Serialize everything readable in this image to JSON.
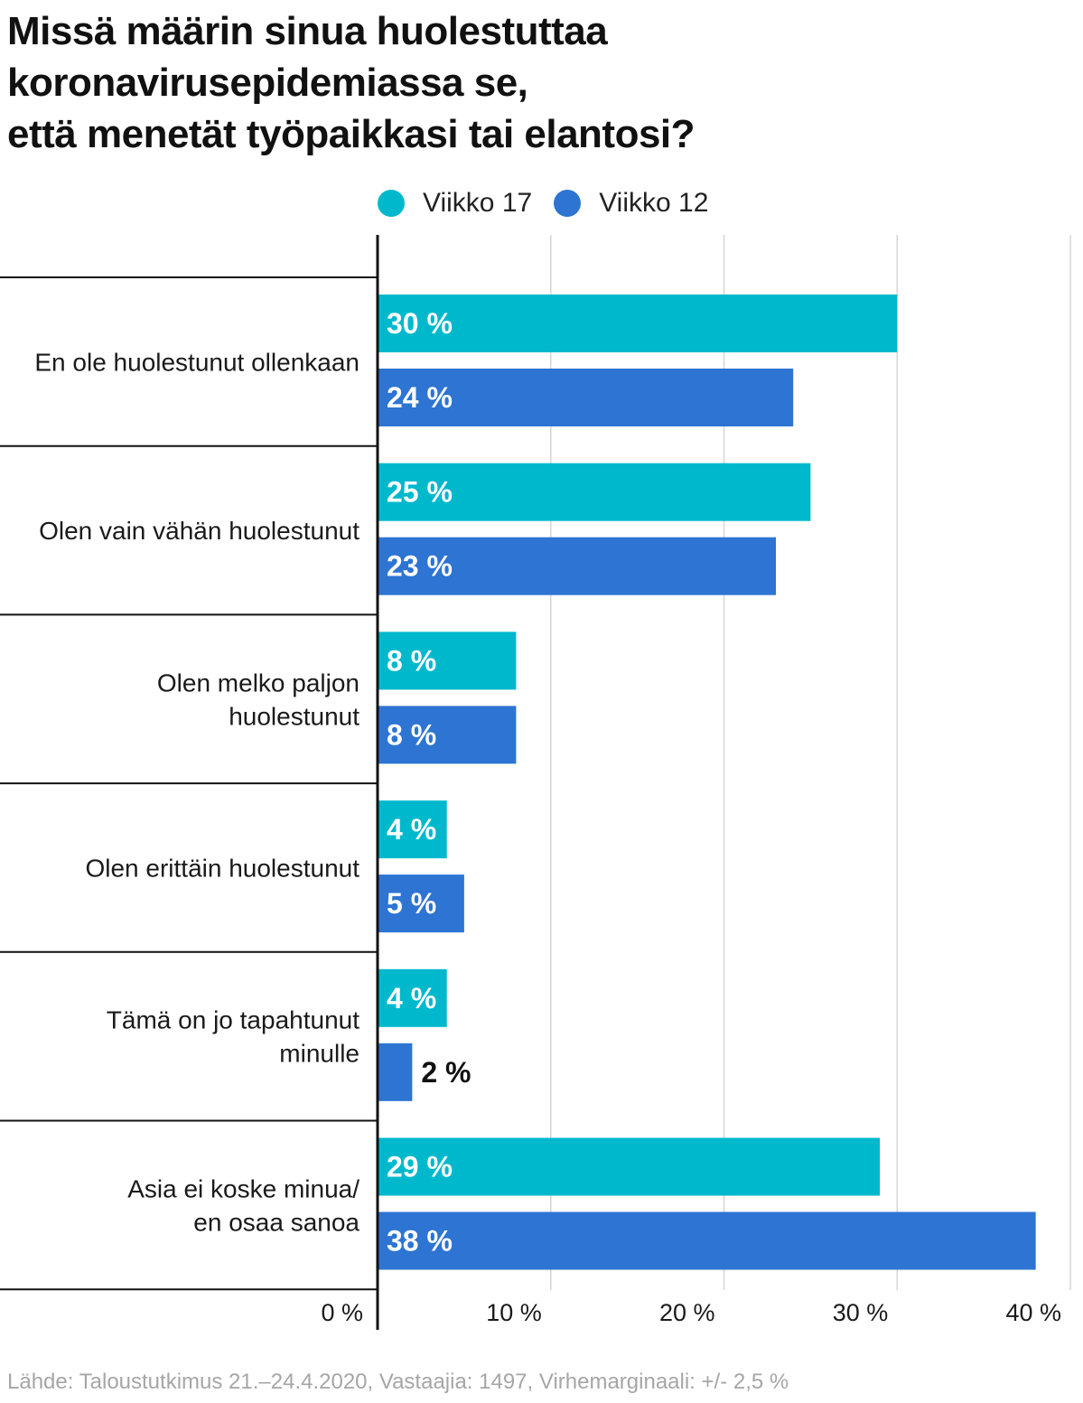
{
  "title_lines": [
    "Missä määrin sinua huolestuttaa",
    "koronavirusepidemiassa se,",
    "että menetät työpaikkasi tai elantosi?"
  ],
  "legend": [
    {
      "label": "Viikko 17",
      "color": "#00b8cc"
    },
    {
      "label": "Viikko 12",
      "color": "#2d74d3"
    }
  ],
  "source": "Lähde: Taloustutkimus 21.–24.4.2020, Vastaajia: 1497, Virhemarginaali: +/- 2,5 %",
  "chart_data": {
    "type": "bar",
    "orientation": "horizontal",
    "title": "Missä määrin sinua huolestuttaa koronavirusepidemiassa se, että menetät työpaikkasi tai elantosi?",
    "categories": [
      [
        "En ole huolestunut ollenkaan"
      ],
      [
        "Olen vain vähän huolestunut"
      ],
      [
        "Olen melko paljon",
        "huolestunut"
      ],
      [
        "Olen erittäin huolestunut"
      ],
      [
        "Tämä on jo tapahtunut",
        "minulle"
      ],
      [
        "Asia ei koske minua/",
        "en osaa sanoa"
      ]
    ],
    "series": [
      {
        "name": "Viikko 17",
        "color": "#00b8cc",
        "values": [
          30,
          25,
          8,
          4,
          4,
          29
        ],
        "labels": [
          "30 %",
          "25 %",
          "8 %",
          "4 %",
          "4 %",
          "29 %"
        ]
      },
      {
        "name": "Viikko 12",
        "color": "#2d74d3",
        "values": [
          24,
          23,
          8,
          5,
          2,
          38
        ],
        "labels": [
          "24 %",
          "23 %",
          "8 %",
          "5 %",
          "2 %",
          "38 %"
        ]
      }
    ],
    "xlim": [
      0,
      40
    ],
    "xticks": [
      0,
      10,
      20,
      30,
      40
    ],
    "xtick_labels": [
      "0 %",
      "10 %",
      "20 %",
      "30 %",
      "40 %"
    ],
    "grid": true,
    "legend_position": "top"
  }
}
